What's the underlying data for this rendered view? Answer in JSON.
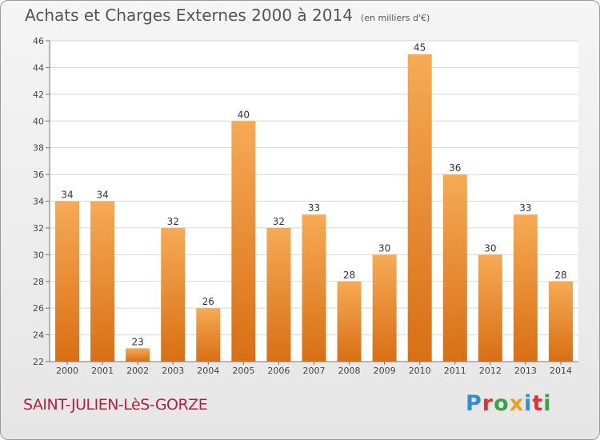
{
  "header": {
    "title": "Achats et Charges Externes 2000 à 2014",
    "subtitle": "(en milliers d'€)"
  },
  "footer": {
    "commune": "SAINT-JULIEN-LèS-GORZE",
    "logo": "Proxiti"
  },
  "colors": {
    "bar_light": "#f7aa55",
    "bar_dark": "#d86f14",
    "commune_text": "#b02244",
    "logo_letters": [
      "#2f8fd0",
      "#e2312f",
      "#3aa34a",
      "#e7a01f",
      "#2f8fd0",
      "#e2312f",
      "#3aa34a"
    ]
  },
  "chart_data": {
    "type": "bar",
    "title": "Achats et Charges Externes 2000 à 2014",
    "subtitle": "(en milliers d'€)",
    "categories": [
      "2000",
      "2001",
      "2002",
      "2003",
      "2004",
      "2005",
      "2006",
      "2007",
      "2008",
      "2009",
      "2010",
      "2011",
      "2012",
      "2013",
      "2014"
    ],
    "values": [
      34,
      34,
      23,
      32,
      26,
      40,
      32,
      33,
      28,
      30,
      45,
      36,
      30,
      33,
      28
    ],
    "ylim": [
      22,
      46
    ],
    "yticks": [
      22,
      24,
      26,
      28,
      30,
      32,
      34,
      36,
      38,
      40,
      42,
      44,
      46
    ],
    "grid": true,
    "data_labels": true
  }
}
